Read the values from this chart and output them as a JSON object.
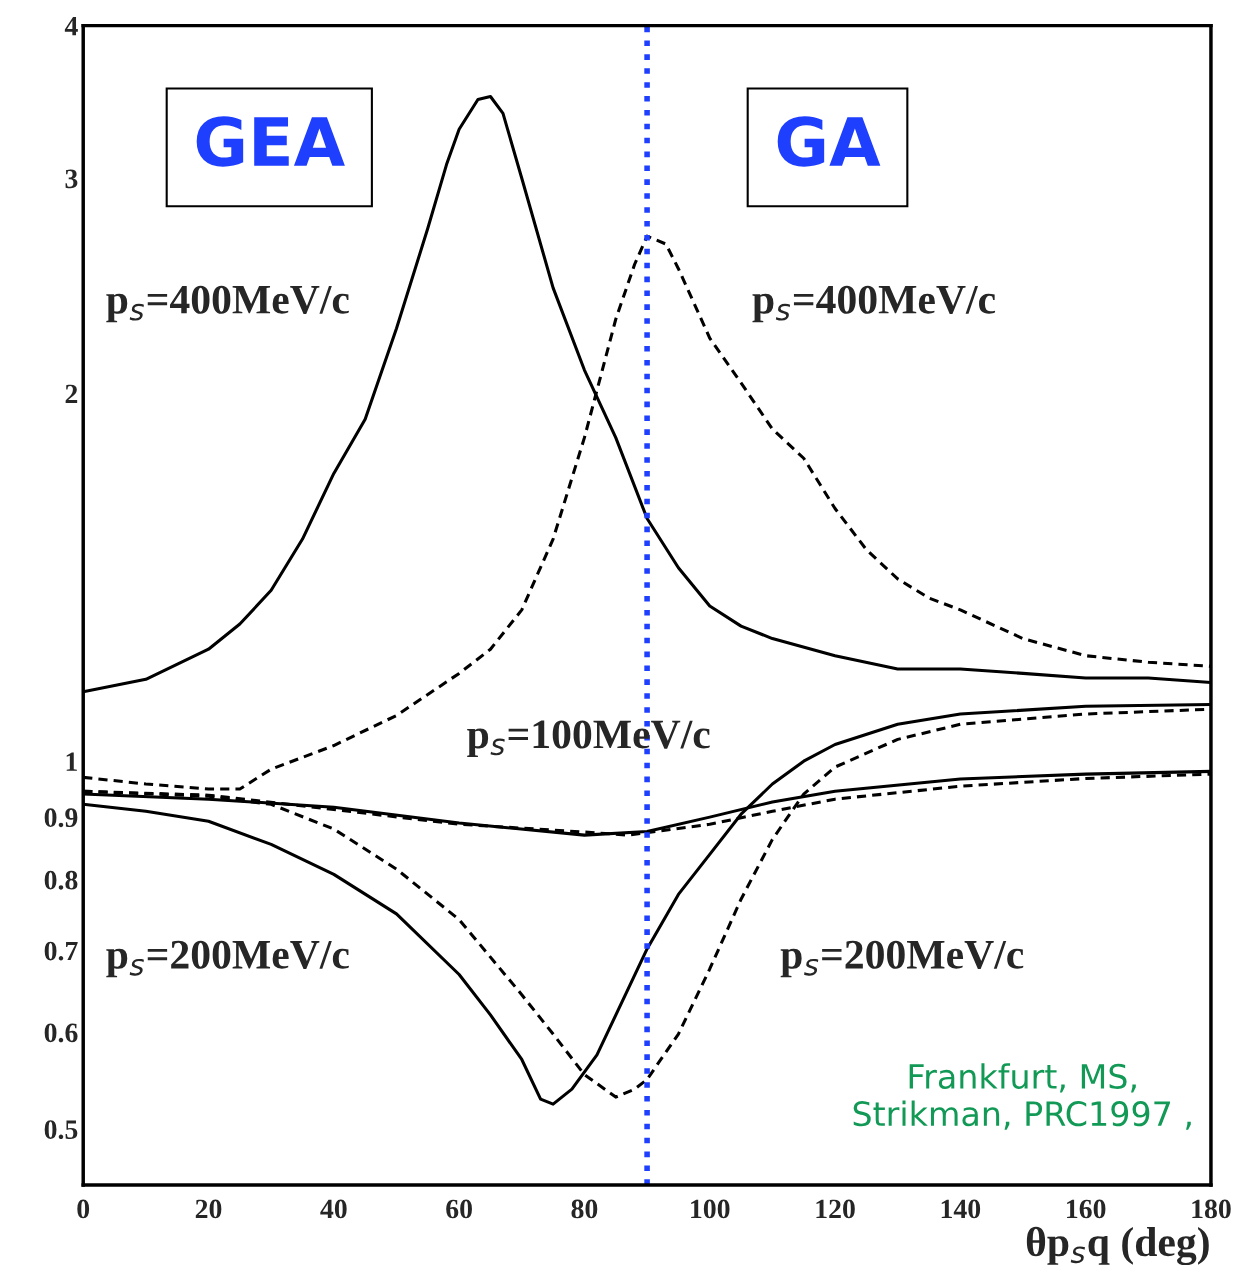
{
  "chart_data": {
    "type": "line",
    "xlabel": "θp$_{s}$q (deg)",
    "log": "y",
    "grid": false,
    "legend": false,
    "marker": "none",
    "xlim": [
      0,
      180
    ],
    "xticks": [
      0,
      20,
      40,
      60,
      80,
      100,
      120,
      140,
      160,
      180
    ],
    "ylim": [
      0.45,
      4
    ],
    "yticks": [
      0.5,
      0.6,
      0.7,
      0.8,
      0.9,
      1,
      2,
      3,
      4
    ],
    "ref_lines": [
      {
        "axis": "x",
        "value": 90,
        "color": "#1f3fff",
        "line_style": "dotted"
      }
    ],
    "annotations": [
      "GEA",
      "GA",
      "p$_{s}$=400MeV/c",
      "p$_{s}$=400MeV/c",
      "p$_{s}$=100MeV/c",
      "p$_{s}$=200MeV/c",
      "p$_{s}$=200MeV/c",
      "Frankfurt, MS,\nStrikman, PRC1997 ,"
    ],
    "series": [
      {
        "color": "#000000",
        "line_style": "solid",
        "x": [
          0,
          10,
          20,
          25,
          30,
          35,
          40,
          45,
          50,
          55,
          58,
          60,
          63,
          65,
          67,
          70,
          75,
          80,
          85,
          90,
          95,
          100,
          105,
          110,
          120,
          130,
          140,
          150,
          160,
          170,
          180
        ],
        "values": [
          1.14,
          1.167,
          1.235,
          1.295,
          1.38,
          1.52,
          1.72,
          1.905,
          2.26,
          2.73,
          3.08,
          3.29,
          3.48,
          3.5,
          3.39,
          3.0,
          2.44,
          2.09,
          1.84,
          1.58,
          1.44,
          1.34,
          1.29,
          1.26,
          1.22,
          1.19,
          1.19,
          1.18,
          1.17,
          1.17,
          1.16
        ]
      },
      {
        "color": "#000000",
        "line_style": "dashed",
        "x": [
          0,
          10,
          20,
          25,
          30,
          40,
          50,
          60,
          65,
          70,
          75,
          80,
          85,
          88,
          90,
          93,
          95,
          100,
          105,
          110,
          115,
          120,
          125,
          130,
          135,
          140,
          150,
          160,
          170,
          180
        ],
        "values": [
          0.97,
          0.958,
          0.949,
          0.949,
          0.985,
          1.03,
          1.09,
          1.18,
          1.235,
          1.33,
          1.52,
          1.84,
          2.3,
          2.55,
          2.69,
          2.65,
          2.53,
          2.22,
          2.04,
          1.87,
          1.77,
          1.61,
          1.49,
          1.41,
          1.36,
          1.33,
          1.26,
          1.22,
          1.205,
          1.196
        ]
      },
      {
        "color": "#000000",
        "line_style": "solid",
        "x": [
          0,
          20,
          40,
          60,
          80,
          90,
          100,
          110,
          120,
          140,
          160,
          180
        ],
        "values": [
          0.94,
          0.931,
          0.917,
          0.89,
          0.87,
          0.876,
          0.9,
          0.926,
          0.945,
          0.967,
          0.976,
          0.981
        ]
      },
      {
        "color": "#000000",
        "line_style": "dashed",
        "x": [
          0,
          20,
          40,
          60,
          80,
          87,
          100,
          110,
          120,
          140,
          160,
          180
        ],
        "values": [
          0.945,
          0.938,
          0.913,
          0.888,
          0.875,
          0.87,
          0.888,
          0.91,
          0.931,
          0.954,
          0.968,
          0.976
        ]
      },
      {
        "color": "#000000",
        "line_style": "solid",
        "x": [
          0,
          10,
          20,
          30,
          40,
          50,
          60,
          65,
          70,
          73,
          75,
          78,
          82,
          90,
          95,
          100,
          105,
          110,
          115,
          120,
          130,
          140,
          160,
          180
        ],
        "values": [
          0.922,
          0.91,
          0.893,
          0.855,
          0.808,
          0.75,
          0.669,
          0.62,
          0.57,
          0.529,
          0.524,
          0.539,
          0.575,
          0.702,
          0.778,
          0.839,
          0.905,
          0.958,
          1.0,
          1.032,
          1.072,
          1.093,
          1.109,
          1.113
        ]
      },
      {
        "color": "#000000",
        "line_style": "dashed",
        "x": [
          0,
          20,
          30,
          40,
          50,
          60,
          70,
          75,
          80,
          85,
          88,
          90,
          95,
          100,
          105,
          110,
          115,
          120,
          130,
          140,
          160,
          180
        ],
        "values": [
          0.945,
          0.936,
          0.922,
          0.88,
          0.816,
          0.742,
          0.644,
          0.598,
          0.554,
          0.531,
          0.539,
          0.549,
          0.598,
          0.676,
          0.771,
          0.863,
          0.94,
          0.989,
          1.042,
          1.072,
          1.093,
          1.103
        ]
      }
    ]
  }
}
